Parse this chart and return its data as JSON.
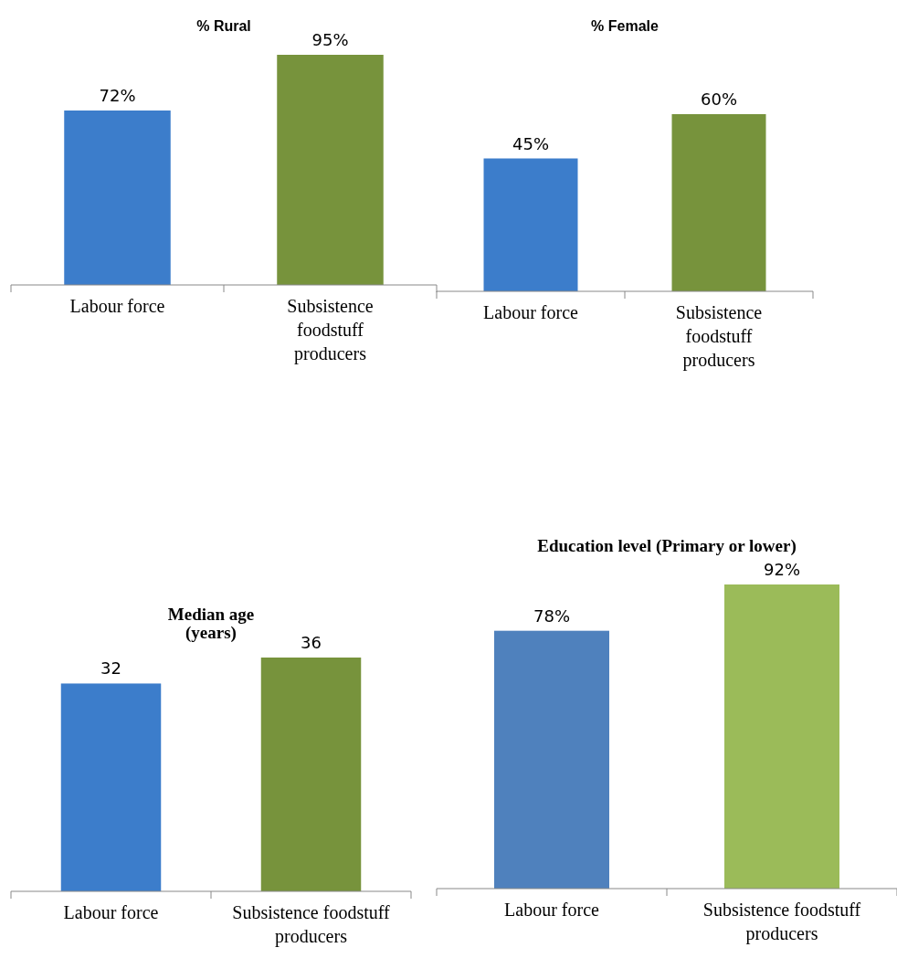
{
  "chart_data": [
    {
      "type": "bar",
      "title": "% Rural",
      "categories": [
        "Labour force",
        "Subsistence foodstuff producers"
      ],
      "values": [
        72,
        95
      ],
      "colors": [
        "#3c7dcb",
        "#77933c"
      ],
      "value_labels": [
        "72%",
        "95%"
      ]
    },
    {
      "type": "bar",
      "title": "% Female",
      "categories": [
        "Labour force",
        "Subsistence foodstuff producers"
      ],
      "values": [
        45,
        60
      ],
      "colors": [
        "#3c7dcb",
        "#77933c"
      ],
      "value_labels": [
        "45%",
        "60%"
      ]
    },
    {
      "type": "bar",
      "title": "Median age (years)",
      "categories": [
        "Labour force",
        "Subsistence foodstuff producers"
      ],
      "values": [
        32,
        36
      ],
      "colors": [
        "#3c7dcb",
        "#77933c"
      ],
      "data_labels": true
    },
    {
      "type": "bar",
      "title": "Education level (Primary or lower)",
      "categories": [
        "Labour force",
        "Subsistence foodstuff producers"
      ],
      "values": [
        78,
        92
      ],
      "colors": [
        "#4f81bd",
        "#9bbb59"
      ],
      "value_labels": [
        "78%",
        "92%"
      ]
    }
  ]
}
